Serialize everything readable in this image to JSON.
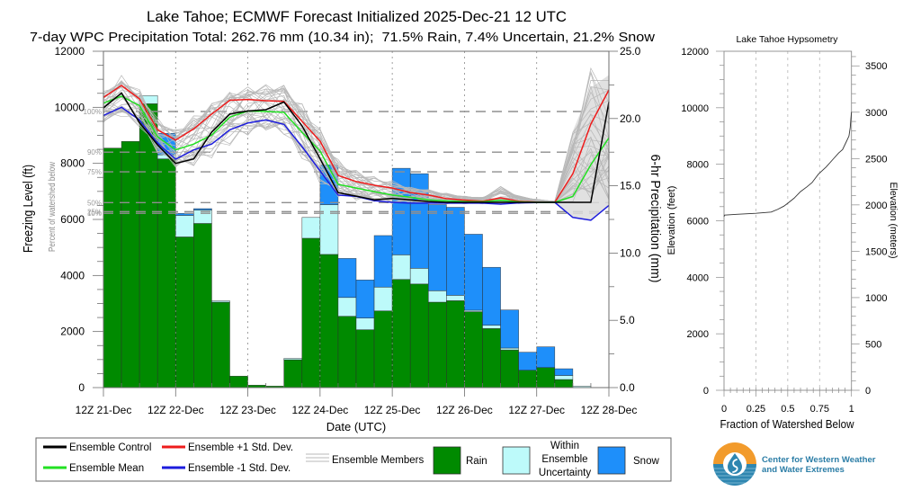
{
  "chart_data": [
    {
      "id": "freezing-level-and-precipitation",
      "type": "bar",
      "overlay_type": "line",
      "title": "Lake Tahoe; ECMWF Forecast Initialized 2025-Dec-21 12 UTC",
      "subtitle": "7-day WPC Precipitation Total: 262.76 mm (10.34 in);  71.5% Rain, 7.4% Uncertain, 21.2% Snow",
      "xlabel": "Date (UTC)",
      "ylabel_left": "Freezing Level (ft)",
      "ylabel_left_secondary": "Percent of watershed below",
      "ylabel_right": "6-hr Precipitation (mm)",
      "x_ticks": [
        "12Z 21-Dec",
        "12Z 22-Dec",
        "12Z 23-Dec",
        "12Z 24-Dec",
        "12Z 25-Dec",
        "12Z 26-Dec",
        "12Z 27-Dec",
        "12Z 28-Dec"
      ],
      "bar_interval_hours": 6,
      "ylim_left": [
        0,
        12000
      ],
      "yticks_left": [
        "0",
        "2000",
        "4000",
        "6000",
        "8000",
        "10000",
        "12000"
      ],
      "ylim_right": [
        0,
        25
      ],
      "yticks_right": [
        "0.0",
        "5.0",
        "10.0",
        "15.0",
        "20.0",
        "25.0"
      ],
      "grid": "dashed vertical at 12Z each day",
      "watershed_percent_lines": [
        {
          "label": "100%",
          "ft": 9850
        },
        {
          "label": "90%",
          "ft": 8400
        },
        {
          "label": "75%",
          "ft": 7700
        },
        {
          "label": "50%",
          "ft": 6600
        },
        {
          "label": "25%",
          "ft": 6280
        },
        {
          "label": "10%",
          "ft": 6220
        }
      ],
      "precip_bars": {
        "units": "mm per 6 hr",
        "rain": [
          17.8,
          18.3,
          21.1,
          17.0,
          11.2,
          12.2,
          6.35,
          0.85,
          0.18,
          0.11,
          2.07,
          11.1,
          9.9,
          5.3,
          4.3,
          5.7,
          8.04,
          7.7,
          6.35,
          6.46,
          5.64,
          4.39,
          2.8,
          1.29,
          1.49,
          0.6,
          0,
          0
        ],
        "uncertain": [
          0,
          0,
          0.6,
          0.3,
          1.6,
          1.0,
          0.1,
          0,
          0,
          0,
          0.1,
          1.55,
          3.7,
          1.4,
          0.87,
          1.77,
          1.83,
          1.17,
          0.85,
          0.4,
          0.11,
          0.25,
          0.14,
          0,
          0,
          0.3,
          0.1,
          0
        ],
        "snow": [
          0,
          0,
          0,
          1.6,
          0.15,
          0.1,
          0,
          0,
          0,
          0,
          0,
          0,
          2.95,
          2.9,
          2.83,
          3.83,
          6.43,
          7.03,
          6.4,
          6.54,
          5.65,
          4.3,
          2.83,
          1.34,
          1.54,
          0.5,
          0,
          0
        ]
      },
      "freezing_level": {
        "units": "ft",
        "control": [
          9980,
          10510,
          9450,
          8660,
          8000,
          8160,
          9120,
          9760,
          9870,
          9915,
          10190,
          9340,
          8160,
          6960,
          6830,
          6700,
          6750,
          6700,
          6640,
          6610,
          6610,
          6610,
          6610,
          6610,
          6610,
          6610,
          6610,
          6610,
          10190
        ],
        "mean": [
          10150,
          10400,
          10060,
          8950,
          8480,
          8690,
          9010,
          9650,
          9870,
          9850,
          9820,
          9110,
          8440,
          7250,
          7120,
          6990,
          6870,
          6790,
          6700,
          6660,
          6640,
          6630,
          6680,
          6630,
          6610,
          6610,
          6820,
          7950,
          8910
        ],
        "plus_1sd": [
          10350,
          10780,
          10300,
          9200,
          8830,
          9230,
          9760,
          10250,
          10280,
          10235,
          10210,
          9500,
          8790,
          7570,
          7350,
          7220,
          7120,
          6960,
          6870,
          6740,
          6690,
          6650,
          6770,
          6650,
          6620,
          6610,
          7630,
          9400,
          10620
        ],
        "minus_1sd": [
          9710,
          10000,
          9550,
          8720,
          8150,
          8480,
          8690,
          9200,
          9440,
          9550,
          9390,
          8600,
          7730,
          6870,
          6820,
          6670,
          6610,
          6580,
          6580,
          6580,
          6580,
          6580,
          6545,
          6590,
          6600,
          6610,
          6070,
          5970,
          6500
        ],
        "members_upper": [
          10600,
          11150,
          10700,
          9650,
          9250,
          9700,
          10300,
          10700,
          10800,
          10850,
          10900,
          10150,
          9300,
          8150,
          7750,
          7550,
          7400,
          7200,
          7100,
          6950,
          6850,
          6800,
          7200,
          6850,
          6720,
          6650,
          9150,
          11500,
          11950
        ],
        "members_lower": [
          9400,
          9650,
          9250,
          8350,
          7800,
          7900,
          8150,
          8650,
          9000,
          9100,
          9000,
          8150,
          7250,
          6750,
          6680,
          6600,
          6560,
          6550,
          6550,
          6550,
          6550,
          6550,
          6520,
          6560,
          6580,
          6600,
          6610,
          6610,
          6610
        ],
        "spread_shading": {
          "start_index": 25,
          "upper": [
            6610,
            9150,
            10700,
            11150
          ],
          "lower": [
            6610,
            6070,
            5970,
            6500
          ]
        }
      },
      "legend": {
        "placement": "bottom",
        "control": "Ensemble Control",
        "mean": "Ensemble Mean",
        "plus_1sd": "Ensemble +1 Std. Dev.",
        "minus_1sd": "Ensemble -1 Std. Dev.",
        "members": "Ensemble Members",
        "rain": "Rain",
        "uncertain_lines": [
          "Within",
          "Ensemble",
          "Uncertainty"
        ],
        "snow": "Snow"
      },
      "colors": {
        "rain": "#008a00",
        "uncertain": "#bdfafa",
        "snow": "#1e8ffa",
        "control": "#000000",
        "mean": "#22e022",
        "plus_1sd": "#ee1c1c",
        "minus_1sd": "#1c1cdd",
        "members": "#b8b8b8",
        "shading": "#dcdcdc"
      }
    },
    {
      "id": "hypsometry",
      "type": "line",
      "title": "Lake Tahoe Hypsometry",
      "xlabel": "Fraction of Watershed Below",
      "ylabel_left": "Elevation (feet)",
      "ylabel_right": "Elevation (meters)",
      "xlim": [
        0,
        1
      ],
      "xticks": [
        "0",
        "0.25",
        "0.5",
        "0.75",
        "1"
      ],
      "ylim_left": [
        0,
        12000
      ],
      "yticks_left": [
        "0",
        "2000",
        "4000",
        "6000",
        "8000",
        "10000",
        "12000"
      ],
      "yticks_right": [
        "0",
        "500",
        "1000",
        "1500",
        "2000",
        "2500",
        "3000",
        "3500"
      ],
      "grid": "dashed vertical at 0.25, 0.5, 0.75",
      "points": [
        [
          0,
          6150
        ],
        [
          0.005,
          6200
        ],
        [
          0.1,
          6230
        ],
        [
          0.25,
          6265
        ],
        [
          0.37,
          6310
        ],
        [
          0.42,
          6400
        ],
        [
          0.47,
          6520
        ],
        [
          0.5,
          6620
        ],
        [
          0.55,
          6800
        ],
        [
          0.6,
          7030
        ],
        [
          0.65,
          7200
        ],
        [
          0.69,
          7350
        ],
        [
          0.74,
          7650
        ],
        [
          0.8,
          7900
        ],
        [
          0.85,
          8150
        ],
        [
          0.9,
          8400
        ],
        [
          0.93,
          8520
        ],
        [
          0.96,
          8800
        ],
        [
          0.98,
          9000
        ],
        [
          0.99,
          9300
        ],
        [
          0.995,
          9600
        ],
        [
          1.0,
          9850
        ]
      ]
    }
  ],
  "logo": {
    "line1": "Center for Western Weather",
    "line2": "and Water Extremes",
    "icon": "water-drop-icon",
    "colors": {
      "orange": "#f29b2c",
      "blue": "#2f86b0",
      "text": "#2b7da6"
    }
  }
}
